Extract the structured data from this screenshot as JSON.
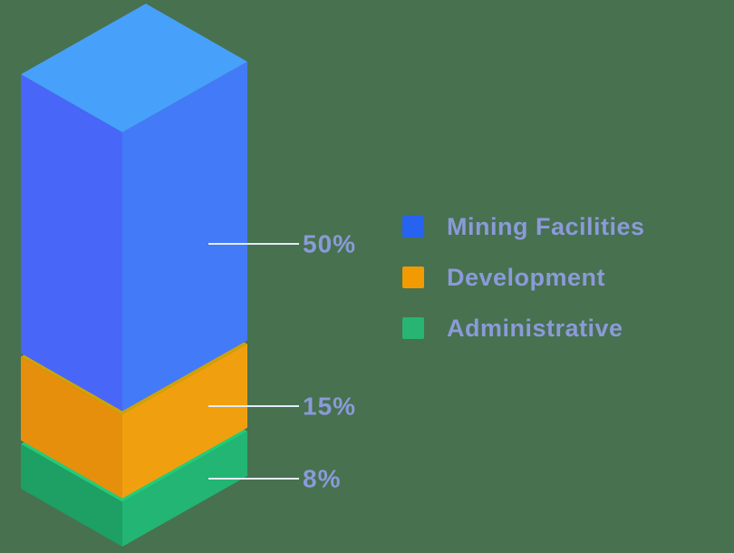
{
  "background_color": "#47714F",
  "label_color": "#8A9AD8",
  "leader_line_color": "#E3EBF7",
  "chart_data": {
    "type": "bar",
    "subtype": "isometric-3d-stacked-column",
    "title": "",
    "unit": "%",
    "categories": [
      "Mining Facilities",
      "Development",
      "Administrative"
    ],
    "values": [
      50,
      15,
      8
    ],
    "segments": [
      {
        "label": "Mining Facilities",
        "value": 50,
        "value_label": "50%",
        "colors": {
          "top": "#47A0FA",
          "left": "#4866F8",
          "right": "#437AF7",
          "legend": "#2563F0"
        }
      },
      {
        "label": "Development",
        "value": 15,
        "value_label": "15%",
        "colors": {
          "top": "#D2A106",
          "left": "#E68F0C",
          "right": "#F0A00E",
          "legend": "#F29A02"
        }
      },
      {
        "label": "Administrative",
        "value": 8,
        "value_label": "8%",
        "colors": {
          "top": "#21CB7A",
          "left": "#1E9F63",
          "right": "#22B573",
          "legend": "#28B574"
        }
      }
    ],
    "legend_position": "right",
    "grid": false,
    "axes_visible": false
  }
}
